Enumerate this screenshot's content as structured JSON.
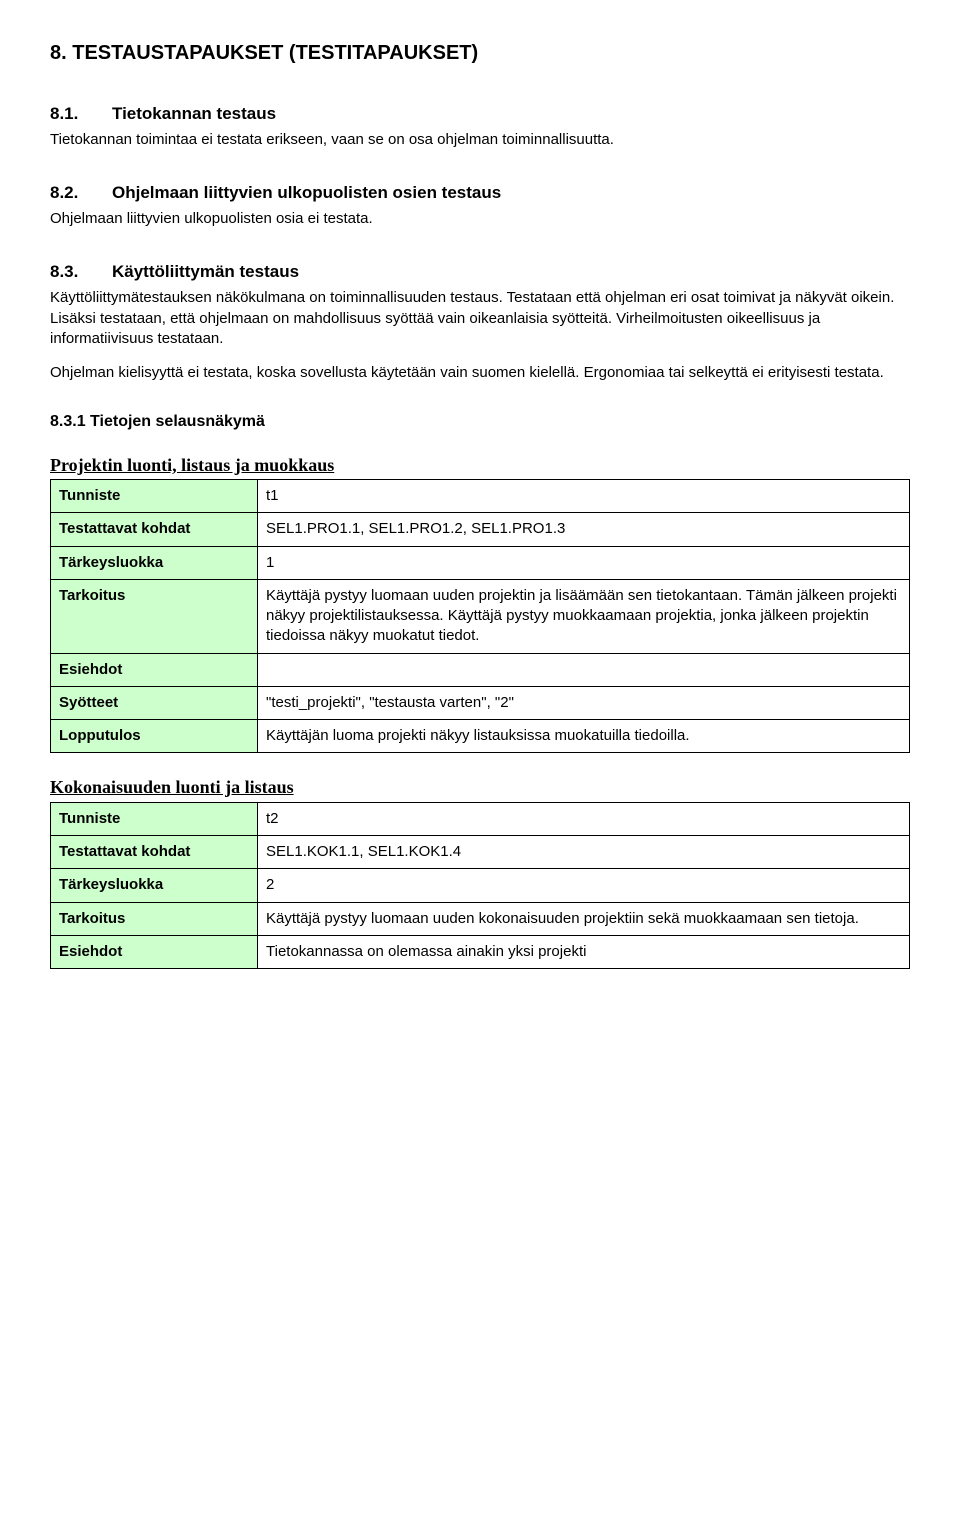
{
  "heading": "8. TESTAUSTAPAUKSET (TESTITAPAUKSET)",
  "s81": {
    "num": "8.1.",
    "title": "Tietokannan testaus",
    "body": "Tietokannan toimintaa ei testata erikseen, vaan se on osa ohjelman toiminnallisuutta."
  },
  "s82": {
    "num": "8.2.",
    "title": "Ohjelmaan liittyvien ulkopuolisten osien testaus",
    "body": "Ohjelmaan liittyvien ulkopuolisten osia ei testata."
  },
  "s83": {
    "num": "8.3.",
    "title": "Käyttöliittymän testaus",
    "p1": "Käyttöliittymätestauksen näkökulmana on toiminnallisuuden testaus. Testataan että ohjelman eri osat toimivat ja näkyvät oikein. Lisäksi testataan, että ohjelmaan on mahdollisuus syöttää vain oikeanlaisia syötteitä. Virheilmoitusten oikeellisuus ja informatiivisuus testataan.",
    "p2": "Ohjelman kielisyyttä ei testata, koska sovellusta käytetään vain suomen kielellä. Ergonomiaa tai selkeyttä ei erityisesti testata."
  },
  "s831": "8.3.1 Tietojen selausnäkymä",
  "labels": {
    "tunniste": "Tunniste",
    "testattavat": "Testattavat kohdat",
    "tarkeys": "Tärkeysluokka",
    "tarkoitus": "Tarkoitus",
    "esiehdot": "Esiehdot",
    "syotteet": "Syötteet",
    "lopputulos": "Lopputulos"
  },
  "table1": {
    "title": "Projektin luonti, listaus ja muokkaus",
    "tunniste": "t1",
    "testattavat": "SEL1.PRO1.1, SEL1.PRO1.2, SEL1.PRO1.3",
    "tarkeys": "1",
    "tarkoitus": "Käyttäjä pystyy luomaan uuden projektin ja lisäämään sen tietokantaan. Tämän jälkeen projekti näkyy projektilistauksessa. Käyttäjä pystyy muokkaamaan projektia, jonka jälkeen projektin tiedoissa näkyy muokatut tiedot.",
    "esiehdot": "",
    "syotteet": "\"testi_projekti\", \"testausta varten\", \"2\"",
    "lopputulos": "Käyttäjän luoma projekti näkyy listauksissa muokatuilla tiedoilla."
  },
  "table2": {
    "title": "Kokonaisuuden luonti ja listaus",
    "tunniste": "t2",
    "testattavat": "SEL1.KOK1.1, SEL1.KOK1.4",
    "tarkeys": "2",
    "tarkoitus": "Käyttäjä pystyy luomaan uuden kokonaisuuden projektiin sekä muokkaamaan sen tietoja.",
    "esiehdot": "Tietokannassa on olemassa ainakin yksi projekti"
  },
  "colors": {
    "label_bg": "#ccffcc",
    "border": "#000000",
    "page_bg": "#ffffff"
  }
}
